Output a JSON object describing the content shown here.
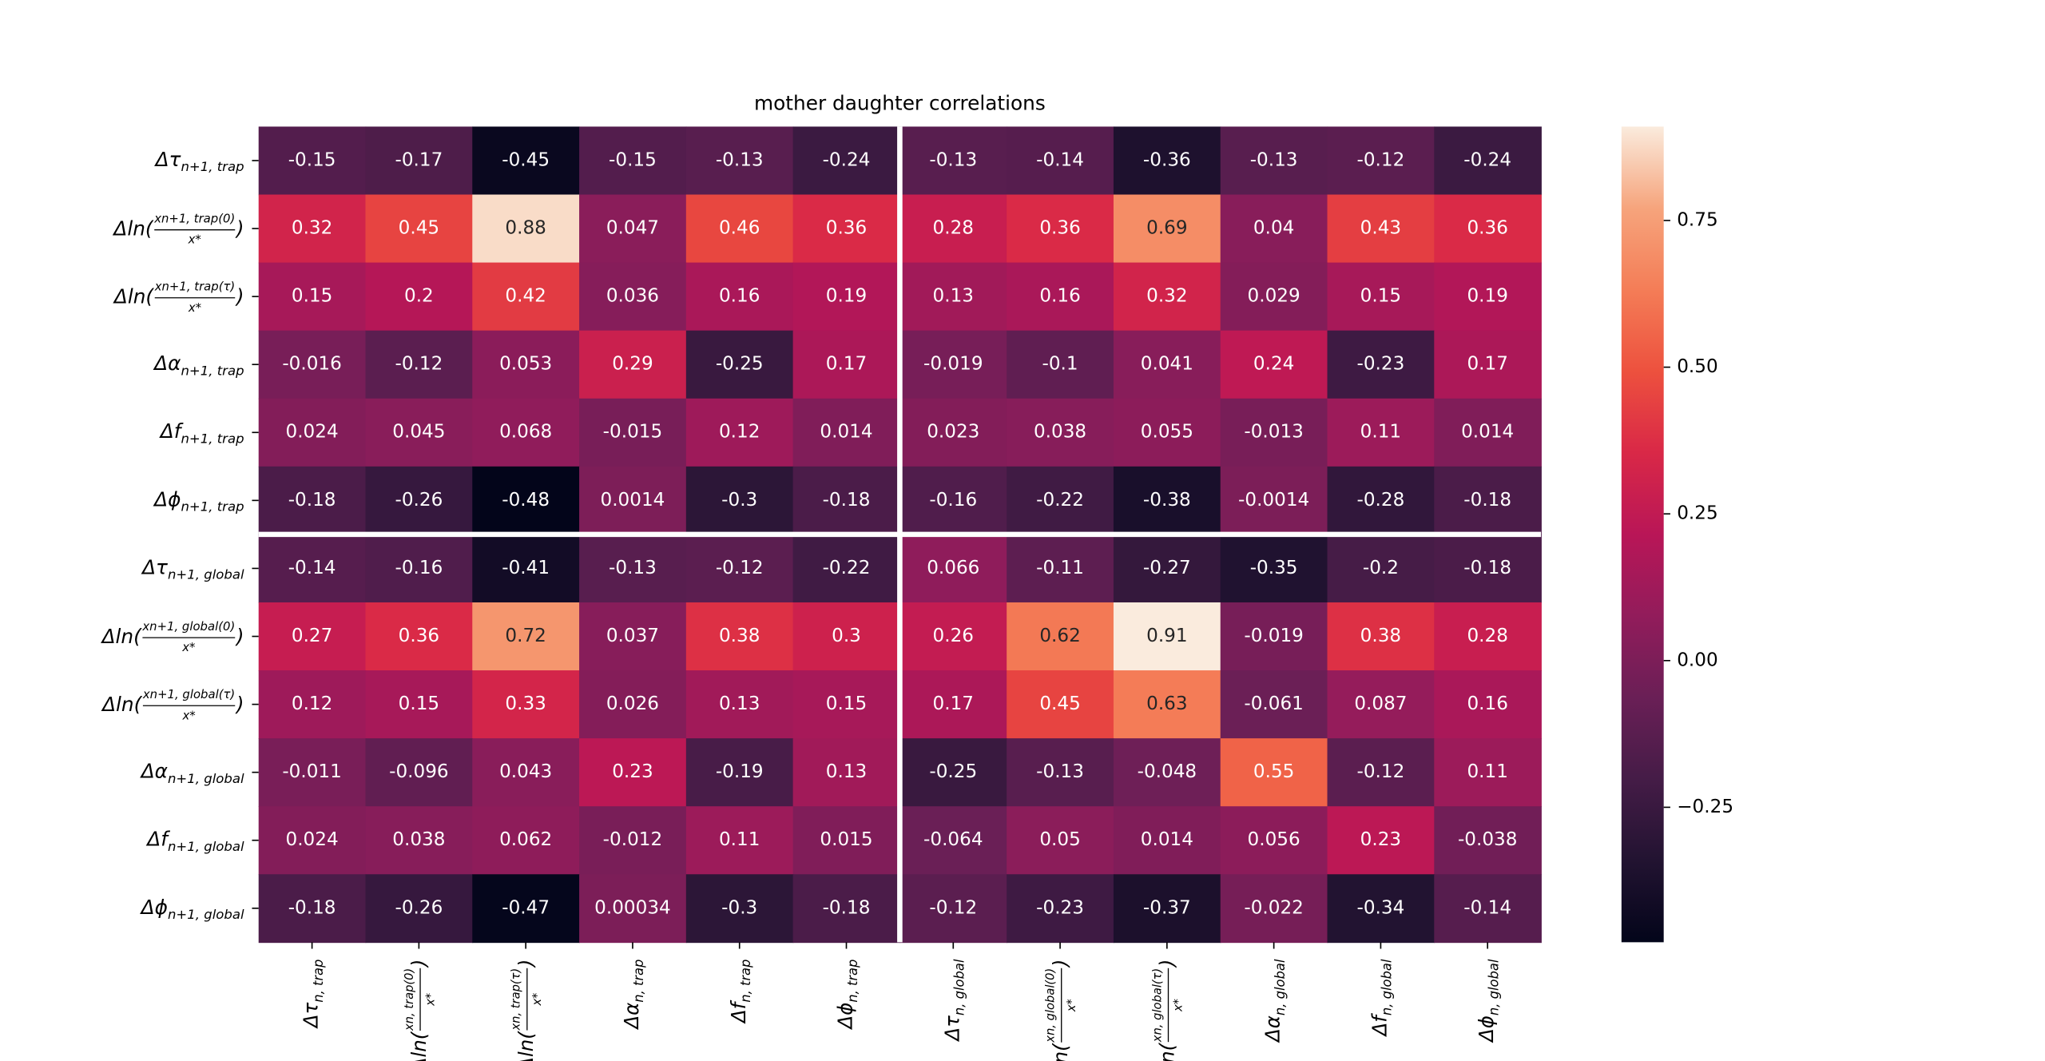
{
  "chart_data": {
    "type": "heatmap",
    "title": "mother daughter correlations",
    "row_labels": [
      {
        "main": "Δτ",
        "sub": "n+1, trap"
      },
      {
        "main": "Δln(",
        "num": "xn+1, trap(0)",
        "den": "x*",
        "close": ")"
      },
      {
        "main": "Δln(",
        "num": "xn+1, trap(τ)",
        "den": "x*",
        "close": ")"
      },
      {
        "main": "Δα",
        "sub": "n+1, trap"
      },
      {
        "main": "Δf",
        "sub": "n+1, trap"
      },
      {
        "main": "Δϕ",
        "sub": "n+1, trap"
      },
      {
        "main": "Δτ",
        "sub": "n+1, global"
      },
      {
        "main": "Δln(",
        "num": "xn+1, global(0)",
        "den": "x*",
        "close": ")"
      },
      {
        "main": "Δln(",
        "num": "xn+1, global(τ)",
        "den": "x*",
        "close": ")"
      },
      {
        "main": "Δα",
        "sub": "n+1, global"
      },
      {
        "main": "Δf",
        "sub": "n+1, global"
      },
      {
        "main": "Δϕ",
        "sub": "n+1, global"
      }
    ],
    "col_labels": [
      {
        "main": "Δτ",
        "sub": "n, trap"
      },
      {
        "main": "Δln(",
        "num": "xn, trap(0)",
        "den": "x*",
        "close": ")"
      },
      {
        "main": "Δln(",
        "num": "xn, trap(τ)",
        "den": "x*",
        "close": ")"
      },
      {
        "main": "Δα",
        "sub": "n, trap"
      },
      {
        "main": "Δf",
        "sub": "n, trap"
      },
      {
        "main": "Δϕ",
        "sub": "n, trap"
      },
      {
        "main": "Δτ",
        "sub": "n, global"
      },
      {
        "main": "Δln(",
        "num": "xn, global(0)",
        "den": "x*",
        "close": ")"
      },
      {
        "main": "Δln(",
        "num": "xn, global(τ)",
        "den": "x*",
        "close": ")"
      },
      {
        "main": "Δα",
        "sub": "n, global"
      },
      {
        "main": "Δf",
        "sub": "n, global"
      },
      {
        "main": "Δϕ",
        "sub": "n, global"
      }
    ],
    "values": [
      [
        -0.15,
        -0.17,
        -0.45,
        -0.15,
        -0.13,
        -0.24,
        -0.13,
        -0.14,
        -0.36,
        -0.13,
        -0.12,
        -0.24
      ],
      [
        0.32,
        0.45,
        0.88,
        0.047,
        0.46,
        0.36,
        0.28,
        0.36,
        0.69,
        0.04,
        0.43,
        0.36
      ],
      [
        0.15,
        0.2,
        0.42,
        0.036,
        0.16,
        0.19,
        0.13,
        0.16,
        0.32,
        0.029,
        0.15,
        0.19
      ],
      [
        -0.016,
        -0.12,
        0.053,
        0.29,
        -0.25,
        0.17,
        -0.019,
        -0.1,
        0.041,
        0.24,
        -0.23,
        0.17
      ],
      [
        0.024,
        0.045,
        0.068,
        -0.015,
        0.12,
        0.014,
        0.023,
        0.038,
        0.055,
        -0.013,
        0.11,
        0.014
      ],
      [
        -0.18,
        -0.26,
        -0.48,
        0.0014,
        -0.3,
        -0.18,
        -0.16,
        -0.22,
        -0.38,
        -0.0014,
        -0.28,
        -0.18
      ],
      [
        -0.14,
        -0.16,
        -0.41,
        -0.13,
        -0.12,
        -0.22,
        0.066,
        -0.11,
        -0.27,
        -0.35,
        -0.2,
        -0.18
      ],
      [
        0.27,
        0.36,
        0.72,
        0.037,
        0.38,
        0.3,
        0.26,
        0.62,
        0.91,
        -0.019,
        0.38,
        0.28
      ],
      [
        0.12,
        0.15,
        0.33,
        0.026,
        0.13,
        0.15,
        0.17,
        0.45,
        0.63,
        -0.061,
        0.087,
        0.16
      ],
      [
        -0.011,
        -0.096,
        0.043,
        0.23,
        -0.19,
        0.13,
        -0.25,
        -0.13,
        -0.048,
        0.55,
        -0.12,
        0.11
      ],
      [
        0.024,
        0.038,
        0.062,
        -0.012,
        0.11,
        0.015,
        -0.064,
        0.05,
        0.014,
        0.056,
        0.23,
        -0.038
      ],
      [
        -0.18,
        -0.26,
        -0.47,
        0.00034,
        -0.3,
        -0.18,
        -0.12,
        -0.23,
        -0.37,
        -0.022,
        -0.34,
        -0.14
      ]
    ],
    "clim": [
      -0.48,
      0.91
    ],
    "colorbar_ticks": [
      {
        "value": -0.25,
        "label": "−0.25"
      },
      {
        "value": 0,
        "label": "0.00"
      },
      0.25,
      {
        "value": 0.5,
        "label": "0.50"
      },
      0.75
    ],
    "colormap": [
      "#03051a",
      "#221331",
      "#451c47",
      "#6a1f56",
      "#921c5b",
      "#b91657",
      "#d92847",
      "#ed513e",
      "#f47d57",
      "#f6a47c",
      "#faebdd"
    ]
  }
}
